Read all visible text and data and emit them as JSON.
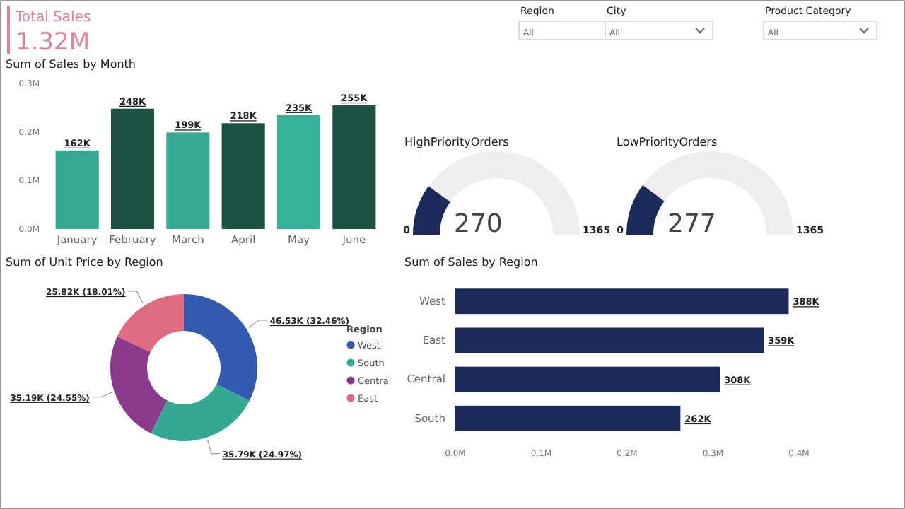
{
  "chart_data": [
    {
      "type": "other",
      "title": "Total Sales",
      "annotations": [
        "1.32M"
      ],
      "color": "#e0829a"
    },
    {
      "type": "other",
      "annotations": [
        "Region",
        "All",
        "City",
        "All",
        "Product Category",
        "All"
      ]
    },
    {
      "type": "bar",
      "title": "Sum of Sales by Month",
      "categories": [
        "January",
        "February",
        "March",
        "April",
        "May",
        "June"
      ],
      "values": [
        162000,
        248000,
        199000,
        218000,
        235000,
        255000
      ],
      "colors": [
        "#36a993",
        "#1e5245",
        "#36a993",
        "#1e5245",
        "#36b399",
        "#1e5245"
      ],
      "value_labels": [
        "162K",
        "248K",
        "199K",
        "218K",
        "235K",
        "255K"
      ],
      "ylim": [
        0,
        300000
      ],
      "yticks": [
        {
          "value": 0,
          "label": "0.0M"
        },
        {
          "value": 100000,
          "label": "0.1M"
        },
        {
          "value": 200000,
          "label": "0.2M"
        },
        {
          "value": 300000,
          "label": "0.3M"
        }
      ],
      "grid": false
    },
    {
      "type": "donut",
      "title": "HighPriorityOrders",
      "categories": [
        null,
        null
      ],
      "values": [
        270,
        1095
      ],
      "colors": [
        "#1b2a5a",
        "#efeeec"
      ],
      "value_labels": [
        "270",
        null
      ],
      "annotations": [
        "0",
        "1365"
      ]
    },
    {
      "type": "donut",
      "title": "LowPriorityOrders",
      "categories": [
        null,
        null
      ],
      "values": [
        277,
        1088
      ],
      "colors": [
        "#1b2a5a",
        "#efeeec"
      ],
      "value_labels": [
        "277",
        null
      ],
      "annotations": [
        "0",
        "1365"
      ]
    },
    {
      "type": "donut",
      "title": "Sum of Unit Price by Region",
      "legend_title": "Region",
      "legend": "right",
      "categories": [
        "West",
        "South",
        "Central",
        "East"
      ],
      "values": [
        46530,
        35790,
        35190,
        25820
      ],
      "value_labels": [
        "46.53K (32.46%)",
        "35.79K (24.97%)",
        "35.19K (24.55%)",
        "25.82K (18.01%)"
      ],
      "colors": [
        "#3459b0",
        "#35a891",
        "#8a3a8c",
        "#de6b80"
      ]
    },
    {
      "type": "bar",
      "orientation": "horizontal",
      "title": "Sum of Sales by Region",
      "categories": [
        "West",
        "East",
        "Central",
        "South"
      ],
      "values": [
        388000,
        359000,
        308000,
        262000
      ],
      "color": "#1b2a5a",
      "value_labels": [
        "388K",
        "359K",
        "308K",
        "262K"
      ],
      "xlim": [
        0,
        400000
      ],
      "xticks": [
        {
          "value": 0,
          "label": "0.0M"
        },
        {
          "value": 100000,
          "label": "0.1M"
        },
        {
          "value": 200000,
          "label": "0.2M"
        },
        {
          "value": 300000,
          "label": "0.3M"
        },
        {
          "value": 400000,
          "label": "0.4M"
        }
      ],
      "grid": false
    }
  ]
}
